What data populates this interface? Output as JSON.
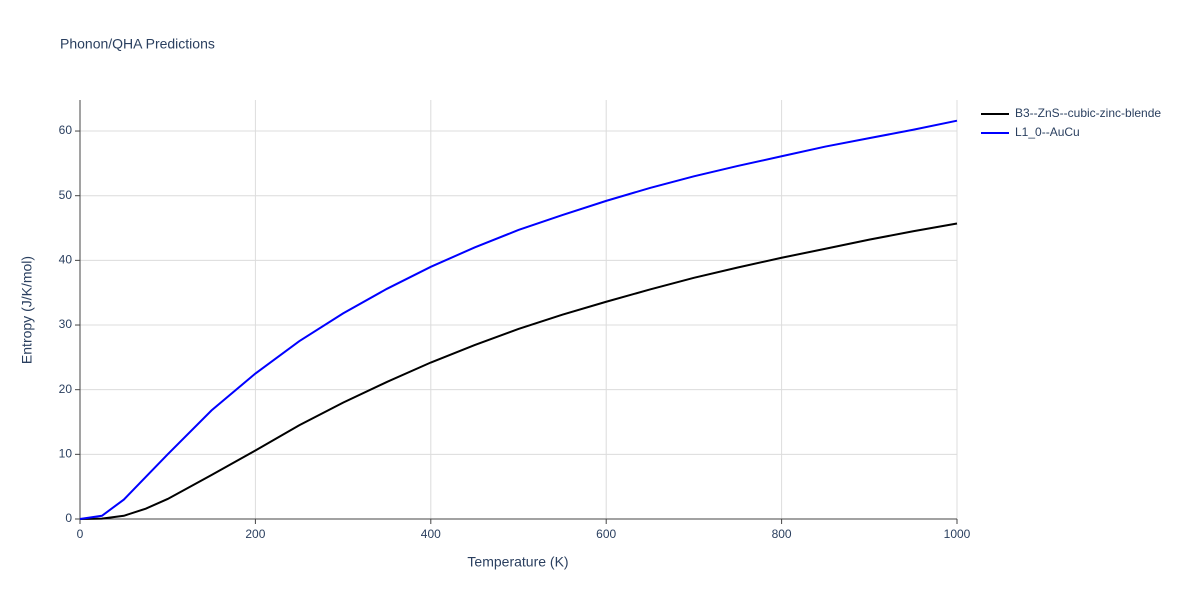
{
  "chart_data": {
    "type": "line",
    "title": "Phonon/QHA Predictions",
    "x_label": "Temperature (K)",
    "y_label": "Entropy (J/K/mol)",
    "x": [
      0,
      25,
      50,
      75,
      100,
      150,
      200,
      250,
      300,
      350,
      400,
      450,
      500,
      550,
      600,
      650,
      700,
      750,
      800,
      850,
      900,
      950,
      1000
    ],
    "series": [
      {
        "name": "B3--ZnS--cubic-zinc-blende",
        "color": "#000000",
        "values": [
          0,
          0.05,
          0.5,
          1.6,
          3.1,
          6.8,
          10.6,
          14.5,
          18.0,
          21.2,
          24.2,
          26.9,
          29.4,
          31.6,
          33.6,
          35.5,
          37.3,
          38.9,
          40.4,
          41.8,
          43.2,
          44.5,
          45.7
        ]
      },
      {
        "name": "L1_0--AuCu",
        "color": "#0000ff",
        "values": [
          0,
          0.5,
          3.0,
          6.5,
          10.0,
          16.8,
          22.5,
          27.5,
          31.8,
          35.6,
          39.0,
          42.0,
          44.7,
          47.0,
          49.2,
          51.2,
          53.0,
          54.6,
          56.1,
          57.6,
          58.9,
          60.2,
          61.6
        ]
      }
    ],
    "xlim": [
      0,
      1000
    ],
    "xticks": [
      0,
      200,
      400,
      600,
      800,
      1000
    ],
    "ylim": [
      0,
      64.8
    ],
    "yticks": [
      0,
      10,
      20,
      30,
      40,
      50,
      60
    ],
    "grid": true
  }
}
